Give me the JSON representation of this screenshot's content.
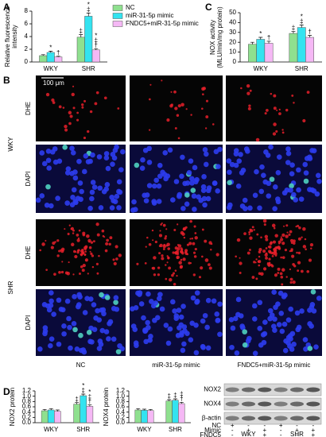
{
  "chart_data": [
    {
      "type": "bar",
      "panel": "A",
      "ylabel": [
        "Relative fluorescence",
        "intensity"
      ],
      "categories": [
        "WKY",
        "SHR"
      ],
      "ylim": [
        0,
        8
      ],
      "yticks": [
        0,
        2,
        4,
        6,
        8
      ],
      "legend": true,
      "series": [
        {
          "name": "NC",
          "color": "#8fe08f",
          "values": [
            1.0,
            3.9
          ],
          "errors": [
            0.15,
            0.4
          ],
          "annotations": [
            null,
            [
              "‡"
            ]
          ]
        },
        {
          "name": "miR-31-5p mimic",
          "color": "#33e3f0",
          "values": [
            1.5,
            7.2
          ],
          "errors": [
            0.2,
            0.5
          ],
          "annotations": [
            [
              "*"
            ],
            [
              "‡",
              "*"
            ]
          ]
        },
        {
          "name": "FNDC5+miR-31-5p mimic",
          "color": "#f5b8f5",
          "values": [
            0.8,
            1.9
          ],
          "errors": [
            0.1,
            0.2
          ],
          "annotations": [
            [
              "†"
            ],
            [
              "†",
              "‡",
              "*"
            ]
          ]
        }
      ]
    },
    {
      "type": "bar",
      "panel": "C",
      "ylabel": [
        "NOX activity",
        "(MLU/min/mg protein)"
      ],
      "categories": [
        "WKY",
        "SHR"
      ],
      "ylim": [
        0,
        50
      ],
      "yticks": [
        0,
        10,
        20,
        30,
        40,
        50
      ],
      "series": [
        {
          "name": "NC",
          "color": "#8fe08f",
          "values": [
            18,
            29
          ],
          "errors": [
            2,
            2
          ],
          "annotations": [
            null,
            [
              "‡"
            ]
          ]
        },
        {
          "name": "miR-31-5p mimic",
          "color": "#33e3f0",
          "values": [
            23,
            35
          ],
          "errors": [
            2,
            2.5
          ],
          "annotations": [
            [
              "*"
            ],
            [
              "‡",
              "*"
            ]
          ]
        },
        {
          "name": "FNDC5+miR-31-5p mimic",
          "color": "#f5b8f5",
          "values": [
            19,
            25
          ],
          "errors": [
            2,
            2
          ],
          "annotations": [
            [
              "†"
            ],
            [
              "†"
            ]
          ]
        }
      ]
    },
    {
      "type": "bar",
      "panel": "D",
      "ylabel": [
        "NOX2 protein"
      ],
      "categories": [
        "WKY",
        "SHR"
      ],
      "ylim": [
        0,
        1.2
      ],
      "yticks": [
        {
          "value": 0,
          "label": "0.0"
        },
        0.2,
        0.4,
        0.6,
        0.8,
        {
          "value": 1,
          "label": "1.0"
        },
        1.2
      ],
      "series": [
        {
          "name": "NC",
          "color": "#8fe08f",
          "values": [
            0.45,
            0.7
          ],
          "errors": [
            0.05,
            0.06
          ],
          "annotations": [
            null,
            [
              "‡"
            ]
          ]
        },
        {
          "name": "miR-31-5p mimic",
          "color": "#33e3f0",
          "values": [
            0.48,
            1.02
          ],
          "errors": [
            0.05,
            0.06
          ],
          "annotations": [
            null,
            [
              "‡",
              "*"
            ]
          ]
        },
        {
          "name": "FNDC5+miR-31-5p mimic",
          "color": "#f5b8f5",
          "values": [
            0.43,
            0.62
          ],
          "errors": [
            0.05,
            0.05
          ],
          "annotations": [
            null,
            [
              "†",
              "‡",
              "*"
            ]
          ]
        }
      ]
    },
    {
      "type": "bar",
      "ylabel": [
        "NOX4 protein"
      ],
      "categories": [
        "WKY",
        "SHR"
      ],
      "ylim": [
        0,
        1.2
      ],
      "yticks": [
        {
          "value": 0,
          "label": "0.0"
        },
        0.2,
        0.4,
        0.6,
        0.8,
        {
          "value": 1,
          "label": "1.0"
        },
        1.2
      ],
      "series": [
        {
          "name": "NC",
          "color": "#8fe08f",
          "values": [
            0.48,
            0.82
          ],
          "errors": [
            0.05,
            0.05
          ],
          "annotations": [
            null,
            [
              "‡"
            ]
          ]
        },
        {
          "name": "miR-31-5p mimic",
          "color": "#33e3f0",
          "values": [
            0.47,
            0.85
          ],
          "errors": [
            0.04,
            0.05
          ],
          "annotations": [
            null,
            [
              "‡"
            ]
          ]
        },
        {
          "name": "FNDC5+miR-31-5p mimic",
          "color": "#f5b8f5",
          "values": [
            0.46,
            0.72
          ],
          "errors": [
            0.04,
            0.05
          ],
          "annotations": [
            null,
            [
              "†",
              "‡"
            ]
          ]
        }
      ]
    }
  ],
  "micrograph": {
    "panel": "B",
    "scale_bar": "100 μm",
    "groups": [
      "WKY",
      "SHR"
    ],
    "stains": [
      "DHE",
      "DAPI"
    ],
    "columns": [
      "NC",
      "miR-31-5p mimic",
      "FNDC5+miR-31-5p mimic"
    ]
  },
  "blot": {
    "proteins": [
      "NOX2",
      "NOX4",
      "β-actin"
    ],
    "groups": [
      "WKY",
      "SHR"
    ],
    "conditions": [
      {
        "name": "NC",
        "signs": [
          "+",
          "-",
          "-",
          "+",
          "-",
          "-"
        ]
      },
      {
        "name": "Mimic",
        "signs": [
          "-",
          "+",
          "+",
          "-",
          "+",
          "+"
        ]
      },
      {
        "name": "FNDC5",
        "signs": [
          "-",
          "-",
          "+",
          "-",
          "-",
          "+"
        ]
      }
    ]
  }
}
